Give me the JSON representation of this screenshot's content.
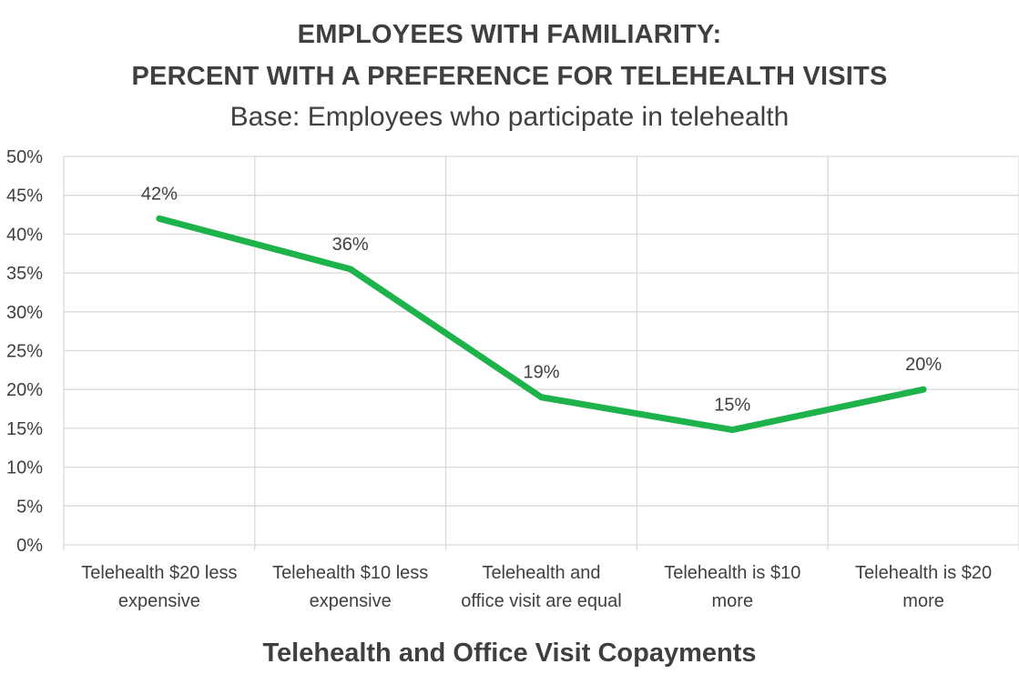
{
  "chart_data": {
    "type": "line",
    "title_lines": [
      "EMPLOYEES WITH FAMILIARITY:",
      "PERCENT WITH A PREFERENCE FOR TELEHEALTH VISITS"
    ],
    "subtitle": "Base: Employees who participate in telehealth",
    "xlabel": "Telehealth and Office Visit Copayments",
    "ylabel": "",
    "categories": [
      "Telehealth $20 less\nexpensive",
      "Telehealth $10 less\nexpensive",
      "Telehealth and\noffice visit are equal",
      "Telehealth is $10\nmore",
      "Telehealth is $20\nmore"
    ],
    "series": [
      {
        "values": [
          42,
          35.5,
          19,
          14.8,
          20
        ],
        "data_labels": [
          "42%",
          "36%",
          "19%",
          "15%",
          "20%"
        ],
        "color": "#1db34a"
      }
    ],
    "ylim": [
      0,
      50
    ],
    "yticks": [
      "0%",
      "5%",
      "10%",
      "15%",
      "20%",
      "25%",
      "30%",
      "35%",
      "40%",
      "45%",
      "50%"
    ],
    "grid": true,
    "legend": "none"
  }
}
